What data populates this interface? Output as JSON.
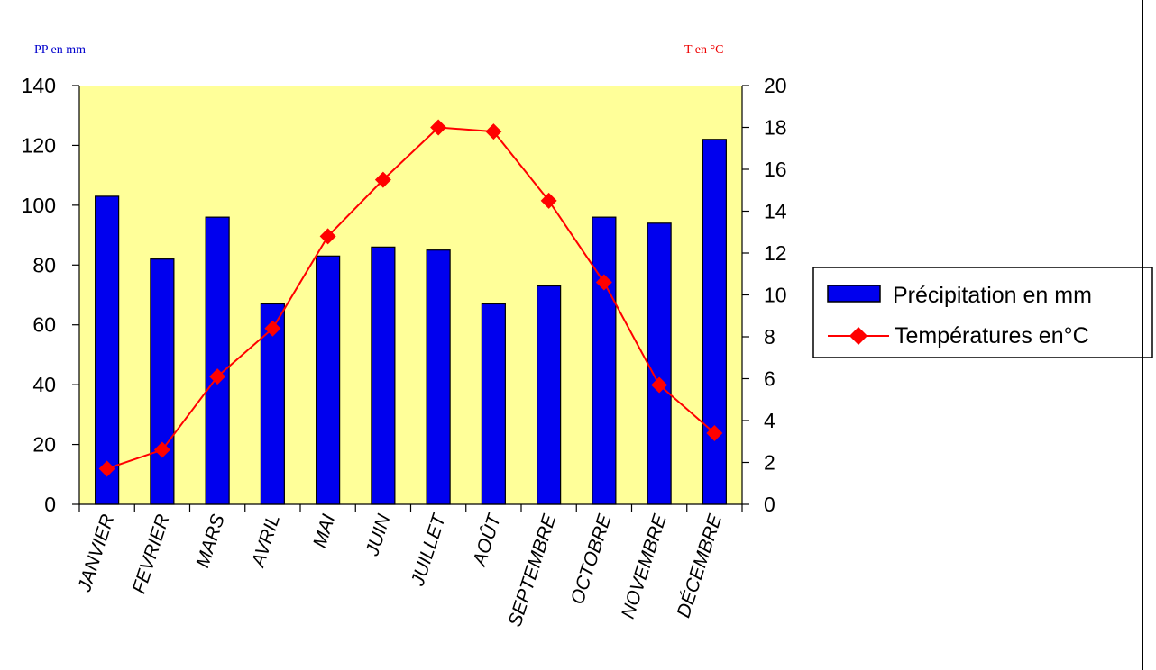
{
  "chart_data": {
    "type": "bar",
    "categories": [
      "JANVIER",
      "FEVRIER",
      "MARS",
      "AVRIL",
      "MAI",
      "JUIN",
      "JUILLET",
      "AOÛT",
      "SEPTEMBRE",
      "OCTOBRE",
      "NOVEMBRE",
      "DÉCEMBRE"
    ],
    "series": [
      {
        "name": "Précipitation en mm",
        "type": "bar",
        "axis": "left",
        "color": "#0000ee",
        "values": [
          103,
          82,
          96,
          67,
          83,
          86,
          85,
          67,
          73,
          96,
          94,
          122
        ]
      },
      {
        "name": "Températures en°C",
        "type": "line",
        "axis": "right",
        "color": "#ff0000",
        "marker": "diamond",
        "values": [
          1.7,
          2.6,
          6.1,
          8.4,
          12.8,
          15.5,
          18.0,
          17.8,
          14.5,
          10.6,
          5.7,
          3.4
        ]
      }
    ],
    "ylabel_left": "PP en mm",
    "ylabel_right": "T en °C",
    "ylim_left": [
      0,
      140
    ],
    "ylim_right": [
      0,
      20
    ],
    "yticks_left": [
      0,
      20,
      40,
      60,
      80,
      100,
      120,
      140
    ],
    "yticks_right": [
      0,
      2,
      4,
      6,
      8,
      10,
      12,
      14,
      16,
      18,
      20
    ],
    "plot_background": "#ffff99",
    "grid": false,
    "legend_position": "right"
  }
}
